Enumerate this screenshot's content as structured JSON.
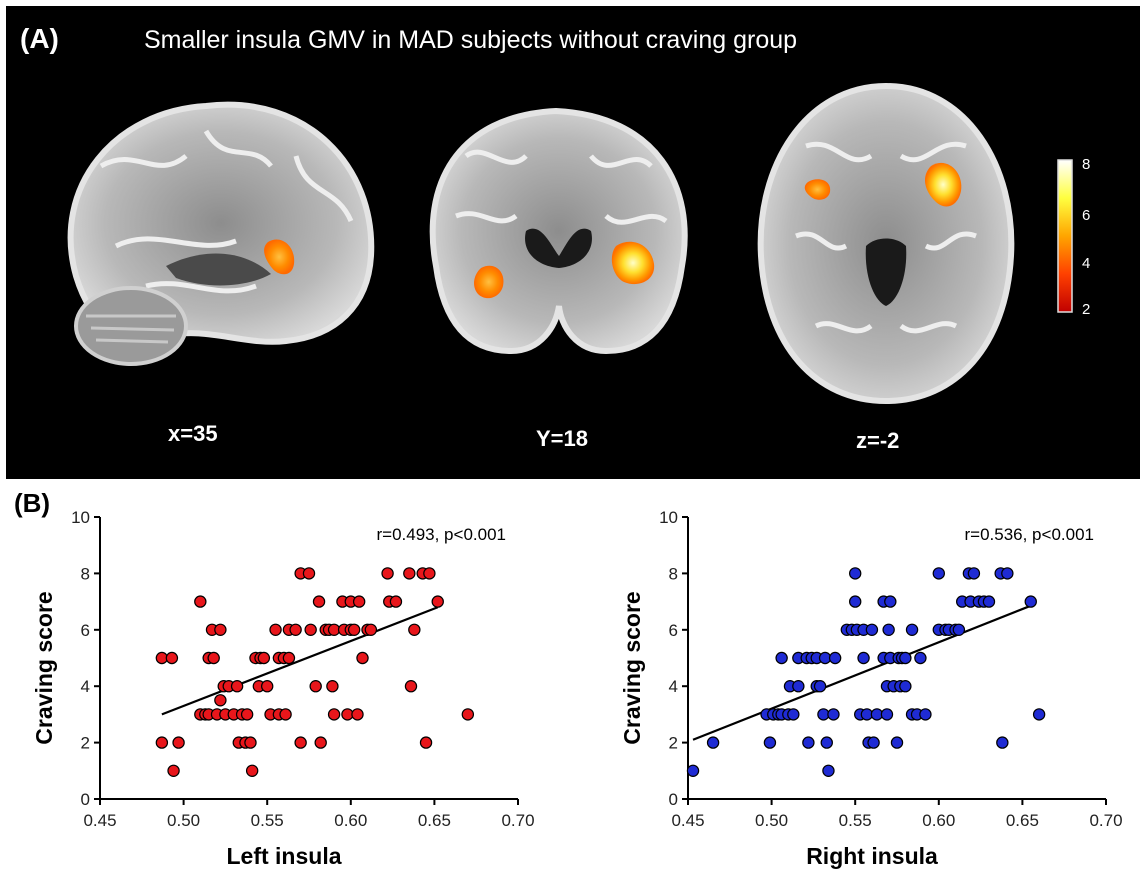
{
  "panel_a": {
    "label": "(A)",
    "title": "Smaller insula GMV in MAD subjects without craving group",
    "slices": [
      {
        "view": "sagittal",
        "label": "x=35"
      },
      {
        "view": "coronal",
        "label": "Y=18"
      },
      {
        "view": "axial",
        "label": "z=-2"
      }
    ],
    "colorbar": {
      "ticks": [
        "8",
        "6",
        "4",
        "2"
      ],
      "colors": [
        "#ffffff",
        "#ffff40",
        "#ffa500",
        "#ff4000",
        "#c00000"
      ]
    }
  },
  "panel_b": {
    "label": "(B)"
  },
  "chart_data": [
    {
      "type": "scatter",
      "xlabel": "Left insula",
      "ylabel": "Craving score",
      "annotation": "r=0.493, p<0.001",
      "xlim": [
        0.45,
        0.7
      ],
      "ylim": [
        0,
        10
      ],
      "xticks": [
        "0.45",
        "0.50",
        "0.55",
        "0.60",
        "0.65",
        "0.70"
      ],
      "yticks": [
        "0",
        "2",
        "4",
        "6",
        "8",
        "10"
      ],
      "marker_color": "#e8161b",
      "fit_line": {
        "x": [
          0.487,
          0.652
        ],
        "y": [
          3.0,
          6.8
        ]
      },
      "points": [
        [
          0.487,
          5
        ],
        [
          0.493,
          5
        ],
        [
          0.487,
          2
        ],
        [
          0.497,
          2
        ],
        [
          0.494,
          1
        ],
        [
          0.51,
          7
        ],
        [
          0.51,
          3
        ],
        [
          0.513,
          3
        ],
        [
          0.515,
          3
        ],
        [
          0.517,
          6
        ],
        [
          0.515,
          5
        ],
        [
          0.518,
          5
        ],
        [
          0.52,
          3
        ],
        [
          0.522,
          6
        ],
        [
          0.522,
          3.5
        ],
        [
          0.524,
          4
        ],
        [
          0.525,
          3
        ],
        [
          0.527,
          4
        ],
        [
          0.53,
          3
        ],
        [
          0.533,
          2
        ],
        [
          0.532,
          4
        ],
        [
          0.535,
          3
        ],
        [
          0.537,
          2
        ],
        [
          0.538,
          3
        ],
        [
          0.54,
          2
        ],
        [
          0.541,
          1
        ],
        [
          0.543,
          5
        ],
        [
          0.545,
          4
        ],
        [
          0.546,
          5
        ],
        [
          0.548,
          5
        ],
        [
          0.55,
          4
        ],
        [
          0.552,
          3
        ],
        [
          0.555,
          6
        ],
        [
          0.557,
          5
        ],
        [
          0.557,
          3
        ],
        [
          0.56,
          5
        ],
        [
          0.561,
          3
        ],
        [
          0.563,
          5
        ],
        [
          0.563,
          6
        ],
        [
          0.57,
          8
        ],
        [
          0.567,
          6
        ],
        [
          0.57,
          2
        ],
        [
          0.575,
          8
        ],
        [
          0.576,
          6
        ],
        [
          0.579,
          4
        ],
        [
          0.581,
          7
        ],
        [
          0.582,
          2
        ],
        [
          0.585,
          6
        ],
        [
          0.587,
          6
        ],
        [
          0.589,
          4
        ],
        [
          0.59,
          3
        ],
        [
          0.59,
          6
        ],
        [
          0.595,
          7
        ],
        [
          0.596,
          6
        ],
        [
          0.598,
          3
        ],
        [
          0.6,
          6
        ],
        [
          0.6,
          7
        ],
        [
          0.602,
          6
        ],
        [
          0.604,
          3
        ],
        [
          0.605,
          7
        ],
        [
          0.607,
          5
        ],
        [
          0.61,
          6
        ],
        [
          0.612,
          6
        ],
        [
          0.622,
          8
        ],
        [
          0.623,
          7
        ],
        [
          0.627,
          7
        ],
        [
          0.635,
          8
        ],
        [
          0.636,
          4
        ],
        [
          0.638,
          6
        ],
        [
          0.643,
          8
        ],
        [
          0.647,
          8
        ],
        [
          0.652,
          7
        ],
        [
          0.645,
          2
        ],
        [
          0.67,
          3
        ]
      ]
    },
    {
      "type": "scatter",
      "xlabel": "Right insula",
      "ylabel": "Craving score",
      "annotation": "r=0.536, p<0.001",
      "xlim": [
        0.45,
        0.7
      ],
      "ylim": [
        0,
        10
      ],
      "xticks": [
        "0.45",
        "0.50",
        "0.55",
        "0.60",
        "0.65",
        "0.70"
      ],
      "yticks": [
        "0",
        "2",
        "4",
        "6",
        "8",
        "10"
      ],
      "marker_color": "#1f2bd4",
      "fit_line": {
        "x": [
          0.453,
          0.657
        ],
        "y": [
          2.1,
          6.9
        ]
      },
      "points": [
        [
          0.453,
          1
        ],
        [
          0.465,
          2
        ],
        [
          0.497,
          3
        ],
        [
          0.499,
          2
        ],
        [
          0.501,
          3
        ],
        [
          0.504,
          3
        ],
        [
          0.506,
          3
        ],
        [
          0.506,
          5
        ],
        [
          0.51,
          3
        ],
        [
          0.511,
          4
        ],
        [
          0.513,
          3
        ],
        [
          0.516,
          4
        ],
        [
          0.516,
          5
        ],
        [
          0.521,
          5
        ],
        [
          0.522,
          2
        ],
        [
          0.524,
          5
        ],
        [
          0.527,
          5
        ],
        [
          0.527,
          4
        ],
        [
          0.529,
          4
        ],
        [
          0.531,
          3
        ],
        [
          0.532,
          5
        ],
        [
          0.533,
          2
        ],
        [
          0.534,
          1
        ],
        [
          0.537,
          3
        ],
        [
          0.538,
          5
        ],
        [
          0.545,
          6
        ],
        [
          0.548,
          6
        ],
        [
          0.55,
          8
        ],
        [
          0.55,
          7
        ],
        [
          0.551,
          6
        ],
        [
          0.553,
          3
        ],
        [
          0.555,
          5
        ],
        [
          0.555,
          6
        ],
        [
          0.557,
          3
        ],
        [
          0.558,
          2
        ],
        [
          0.56,
          6
        ],
        [
          0.561,
          2
        ],
        [
          0.563,
          3
        ],
        [
          0.567,
          7
        ],
        [
          0.567,
          5
        ],
        [
          0.569,
          4
        ],
        [
          0.569,
          3
        ],
        [
          0.57,
          6
        ],
        [
          0.571,
          7
        ],
        [
          0.571,
          5
        ],
        [
          0.573,
          4
        ],
        [
          0.575,
          2
        ],
        [
          0.576,
          5
        ],
        [
          0.577,
          4
        ],
        [
          0.578,
          5
        ],
        [
          0.58,
          5
        ],
        [
          0.58,
          4
        ],
        [
          0.584,
          6
        ],
        [
          0.584,
          3
        ],
        [
          0.587,
          3
        ],
        [
          0.589,
          5
        ],
        [
          0.592,
          3
        ],
        [
          0.6,
          8
        ],
        [
          0.6,
          6
        ],
        [
          0.604,
          6
        ],
        [
          0.606,
          6
        ],
        [
          0.61,
          6
        ],
        [
          0.612,
          6
        ],
        [
          0.614,
          7
        ],
        [
          0.618,
          8
        ],
        [
          0.619,
          7
        ],
        [
          0.621,
          8
        ],
        [
          0.624,
          7
        ],
        [
          0.627,
          7
        ],
        [
          0.63,
          7
        ],
        [
          0.637,
          8
        ],
        [
          0.641,
          8
        ],
        [
          0.638,
          2
        ],
        [
          0.655,
          7
        ],
        [
          0.66,
          3
        ]
      ]
    }
  ]
}
